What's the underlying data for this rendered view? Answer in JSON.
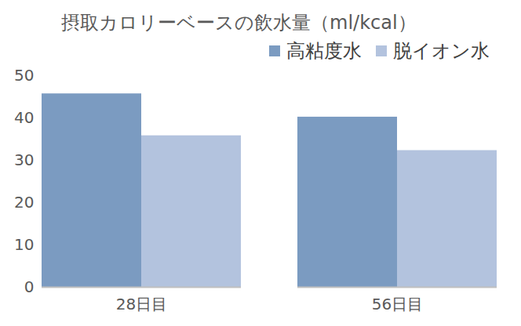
{
  "chart_data": {
    "type": "bar",
    "title": "摂取カロリーベースの飲水量（ml/kcal）",
    "categories": [
      "28日目",
      "56日目"
    ],
    "series": [
      {
        "name": "高粘度水",
        "color": "#7b9bc1",
        "values": [
          45.7,
          40.2
        ]
      },
      {
        "name": "脱イオン水",
        "color": "#b3c3de",
        "values": [
          35.8,
          32.3
        ]
      }
    ],
    "ylim": [
      0,
      50
    ],
    "yticks": [
      0,
      10,
      20,
      30,
      40,
      50
    ],
    "grid": false,
    "legend": "top-right"
  }
}
